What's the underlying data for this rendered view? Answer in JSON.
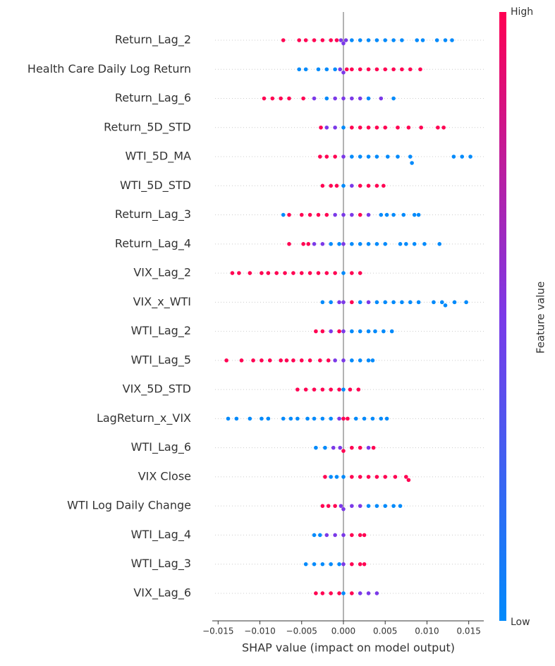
{
  "chart_data": {
    "type": "beeswarm",
    "xlabel": "SHAP value (impact on model output)",
    "xlim": [
      -0.0157,
      0.0168
    ],
    "xticks": [
      {
        "value": -0.015,
        "label": "−0.015"
      },
      {
        "value": -0.01,
        "label": "−0.010"
      },
      {
        "value": -0.005,
        "label": "−0.005"
      },
      {
        "value": 0,
        "label": "0.000"
      },
      {
        "value": 0.005,
        "label": "0.005"
      },
      {
        "value": 0.01,
        "label": "0.010"
      },
      {
        "value": 0.015,
        "label": "0.015"
      }
    ],
    "colorbar": {
      "label": "Feature value",
      "high": "High",
      "low": "Low",
      "colors": [
        "#008afb",
        "#7b39e8",
        "#ff0052"
      ]
    },
    "features": [
      {
        "name": "Return_Lag_2",
        "shap": [
          -0.0072,
          -0.0053,
          -0.0045,
          -0.0035,
          -0.0025,
          -0.0015,
          -0.0008,
          -0.0003,
          0,
          0.0003,
          0.001,
          0.002,
          0.003,
          0.004,
          0.005,
          0.006,
          0.007,
          0.0088,
          0.0095,
          0.0112,
          0.0122,
          0.013
        ],
        "feature_values": [
          1,
          1,
          1,
          1,
          1,
          1,
          1,
          0.5,
          0.5,
          0.5,
          0,
          0,
          0,
          0,
          0,
          0,
          0,
          0,
          0,
          0,
          0,
          0
        ]
      },
      {
        "name": "Health Care Daily Log Return",
        "shap": [
          -0.0053,
          -0.0045,
          -0.003,
          -0.002,
          -0.001,
          -0.0004,
          0,
          0.0004,
          0.001,
          0.002,
          0.003,
          0.004,
          0.005,
          0.006,
          0.007,
          0.008,
          0.0092
        ],
        "feature_values": [
          0,
          0,
          0,
          0,
          0,
          0.5,
          0.5,
          1,
          1,
          1,
          1,
          1,
          1,
          1,
          1,
          1,
          1
        ]
      },
      {
        "name": "Return_Lag_6",
        "shap": [
          -0.0095,
          -0.0085,
          -0.0075,
          -0.0065,
          -0.0048,
          -0.0035,
          -0.002,
          -0.001,
          0,
          0.001,
          0.002,
          0.003,
          0.0045,
          0.006
        ],
        "feature_values": [
          1,
          1,
          1,
          1,
          1,
          0.5,
          0,
          0.5,
          0.5,
          0.5,
          0.5,
          0,
          0.5,
          0
        ]
      },
      {
        "name": "Return_5D_STD",
        "shap": [
          -0.0027,
          -0.002,
          -0.001,
          0,
          0.001,
          0.002,
          0.003,
          0.004,
          0.005,
          0.0065,
          0.0078,
          0.0093,
          0.0113,
          0.012
        ],
        "feature_values": [
          1,
          0.5,
          0.5,
          0,
          1,
          1,
          1,
          1,
          1,
          1,
          1,
          1,
          1,
          1
        ]
      },
      {
        "name": "WTI_5D_MA",
        "shap": [
          -0.0028,
          -0.002,
          -0.001,
          0,
          0.001,
          0.002,
          0.003,
          0.004,
          0.0053,
          0.0065,
          0.008,
          0.0082,
          0.0132,
          0.0142,
          0.0152
        ],
        "feature_values": [
          1,
          1,
          1,
          0.5,
          0,
          0,
          0,
          0,
          0,
          0,
          0,
          0,
          0,
          0,
          0
        ]
      },
      {
        "name": "WTI_5D_STD",
        "shap": [
          -0.0025,
          -0.0015,
          -0.0008,
          0,
          0.001,
          0.002,
          0.003,
          0.004,
          0.0048
        ],
        "feature_values": [
          1,
          1,
          1,
          0,
          0.5,
          1,
          1,
          1,
          1
        ]
      },
      {
        "name": "Return_Lag_3",
        "shap": [
          -0.0072,
          -0.0065,
          -0.005,
          -0.004,
          -0.003,
          -0.002,
          -0.001,
          0,
          0.001,
          0.002,
          0.003,
          0.0045,
          0.0052,
          0.006,
          0.0072,
          0.0085,
          0.009
        ],
        "feature_values": [
          0,
          1,
          1,
          1,
          1,
          1,
          0.5,
          0.5,
          0.5,
          1,
          0.5,
          0,
          0,
          0,
          0,
          0,
          0
        ]
      },
      {
        "name": "Return_Lag_4",
        "shap": [
          -0.0065,
          -0.0048,
          -0.0042,
          -0.0035,
          -0.0025,
          -0.0015,
          -0.0005,
          0,
          0.001,
          0.002,
          0.003,
          0.004,
          0.005,
          0.0068,
          0.0075,
          0.0085,
          0.0097,
          0.0115
        ],
        "feature_values": [
          1,
          1,
          1,
          0.5,
          0.5,
          0,
          0,
          0.5,
          0,
          0,
          0,
          0,
          0,
          0,
          0,
          0,
          0,
          0
        ]
      },
      {
        "name": "VIX_Lag_2",
        "shap": [
          -0.0133,
          -0.0125,
          -0.0112,
          -0.0098,
          -0.009,
          -0.008,
          -0.007,
          -0.006,
          -0.005,
          -0.004,
          -0.003,
          -0.002,
          -0.001,
          0,
          0.001,
          0.002
        ],
        "feature_values": [
          1,
          1,
          1,
          1,
          1,
          1,
          1,
          1,
          1,
          1,
          1,
          1,
          1,
          0,
          1,
          1
        ]
      },
      {
        "name": "VIX_x_WTI",
        "shap": [
          -0.0025,
          -0.0015,
          -0.0005,
          0,
          0.001,
          0.002,
          0.003,
          0.004,
          0.005,
          0.006,
          0.007,
          0.008,
          0.009,
          0.0108,
          0.0118,
          0.0122,
          0.0133,
          0.0147
        ],
        "feature_values": [
          0,
          0,
          0.5,
          0.5,
          1,
          0,
          0.5,
          0,
          0,
          0,
          0,
          0,
          0,
          0,
          0,
          0,
          0,
          0
        ]
      },
      {
        "name": "WTI_Lag_2",
        "shap": [
          -0.0033,
          -0.0025,
          -0.0015,
          -0.0005,
          0,
          0.001,
          0.002,
          0.003,
          0.0038,
          0.0048,
          0.0058
        ],
        "feature_values": [
          1,
          1,
          0.5,
          1,
          0.5,
          0,
          0,
          0,
          0,
          0,
          0
        ]
      },
      {
        "name": "WTI_Lag_5",
        "shap": [
          -0.014,
          -0.0122,
          -0.0108,
          -0.0098,
          -0.0088,
          -0.0075,
          -0.0068,
          -0.006,
          -0.005,
          -0.004,
          -0.0028,
          -0.0018,
          -0.001,
          0,
          0.001,
          0.002,
          0.003,
          0.0035
        ],
        "feature_values": [
          1,
          1,
          1,
          1,
          1,
          1,
          1,
          1,
          1,
          1,
          1,
          1,
          0.5,
          0.5,
          0,
          0,
          0,
          0
        ]
      },
      {
        "name": "VIX_5D_STD",
        "shap": [
          -0.0055,
          -0.0045,
          -0.0035,
          -0.0025,
          -0.0015,
          -0.0005,
          0,
          0.0008,
          0.0018
        ],
        "feature_values": [
          1,
          1,
          1,
          1,
          1,
          1,
          0,
          1,
          1
        ]
      },
      {
        "name": "LagReturn_x_VIX",
        "shap": [
          -0.0138,
          -0.0128,
          -0.0112,
          -0.0098,
          -0.009,
          -0.0072,
          -0.0063,
          -0.0055,
          -0.0043,
          -0.0035,
          -0.0025,
          -0.0015,
          -0.0005,
          0,
          0.0005,
          0.0015,
          0.0025,
          0.0035,
          0.0045,
          0.0052
        ],
        "feature_values": [
          0,
          0,
          0,
          0,
          0,
          0,
          0,
          0,
          0,
          0,
          0,
          0,
          0.5,
          1,
          1,
          0,
          0,
          0,
          0,
          0
        ]
      },
      {
        "name": "WTI_Lag_6",
        "shap": [
          -0.0033,
          -0.0022,
          -0.0012,
          -0.0004,
          0,
          0.001,
          0.002,
          0.003,
          0.0036
        ],
        "feature_values": [
          0,
          0,
          0.5,
          0.5,
          1,
          1,
          1,
          0.5,
          1
        ]
      },
      {
        "name": "VIX Close",
        "shap": [
          -0.0022,
          -0.0015,
          -0.0008,
          0,
          0.001,
          0.002,
          0.003,
          0.004,
          0.005,
          0.0062,
          0.0075,
          0.0078
        ],
        "feature_values": [
          1,
          0,
          0,
          0,
          1,
          1,
          1,
          1,
          1,
          1,
          1,
          1
        ]
      },
      {
        "name": "WTI Log Daily Change",
        "shap": [
          -0.0025,
          -0.0018,
          -0.001,
          -0.0003,
          0,
          0.001,
          0.002,
          0.003,
          0.004,
          0.005,
          0.006,
          0.0068
        ],
        "feature_values": [
          1,
          1,
          1,
          0.5,
          0.5,
          0.5,
          0.5,
          0,
          0,
          0,
          0,
          0
        ]
      },
      {
        "name": "WTI_Lag_4",
        "shap": [
          -0.0035,
          -0.0028,
          -0.002,
          -0.001,
          0,
          0.001,
          0.002,
          0.0025
        ],
        "feature_values": [
          0,
          0,
          0.5,
          0.5,
          0.5,
          1,
          1,
          1
        ]
      },
      {
        "name": "WTI_Lag_3",
        "shap": [
          -0.0045,
          -0.0035,
          -0.0025,
          -0.0015,
          -0.0005,
          0,
          0.001,
          0.002,
          0.0025
        ],
        "feature_values": [
          0,
          0,
          0,
          0,
          0,
          0.5,
          1,
          1,
          1
        ]
      },
      {
        "name": "VIX_Lag_6",
        "shap": [
          -0.0033,
          -0.0025,
          -0.0015,
          -0.0005,
          0,
          0.001,
          0.002,
          0.003,
          0.004
        ],
        "feature_values": [
          1,
          1,
          1,
          1,
          0,
          1,
          0.5,
          0.5,
          0.5
        ]
      }
    ]
  }
}
